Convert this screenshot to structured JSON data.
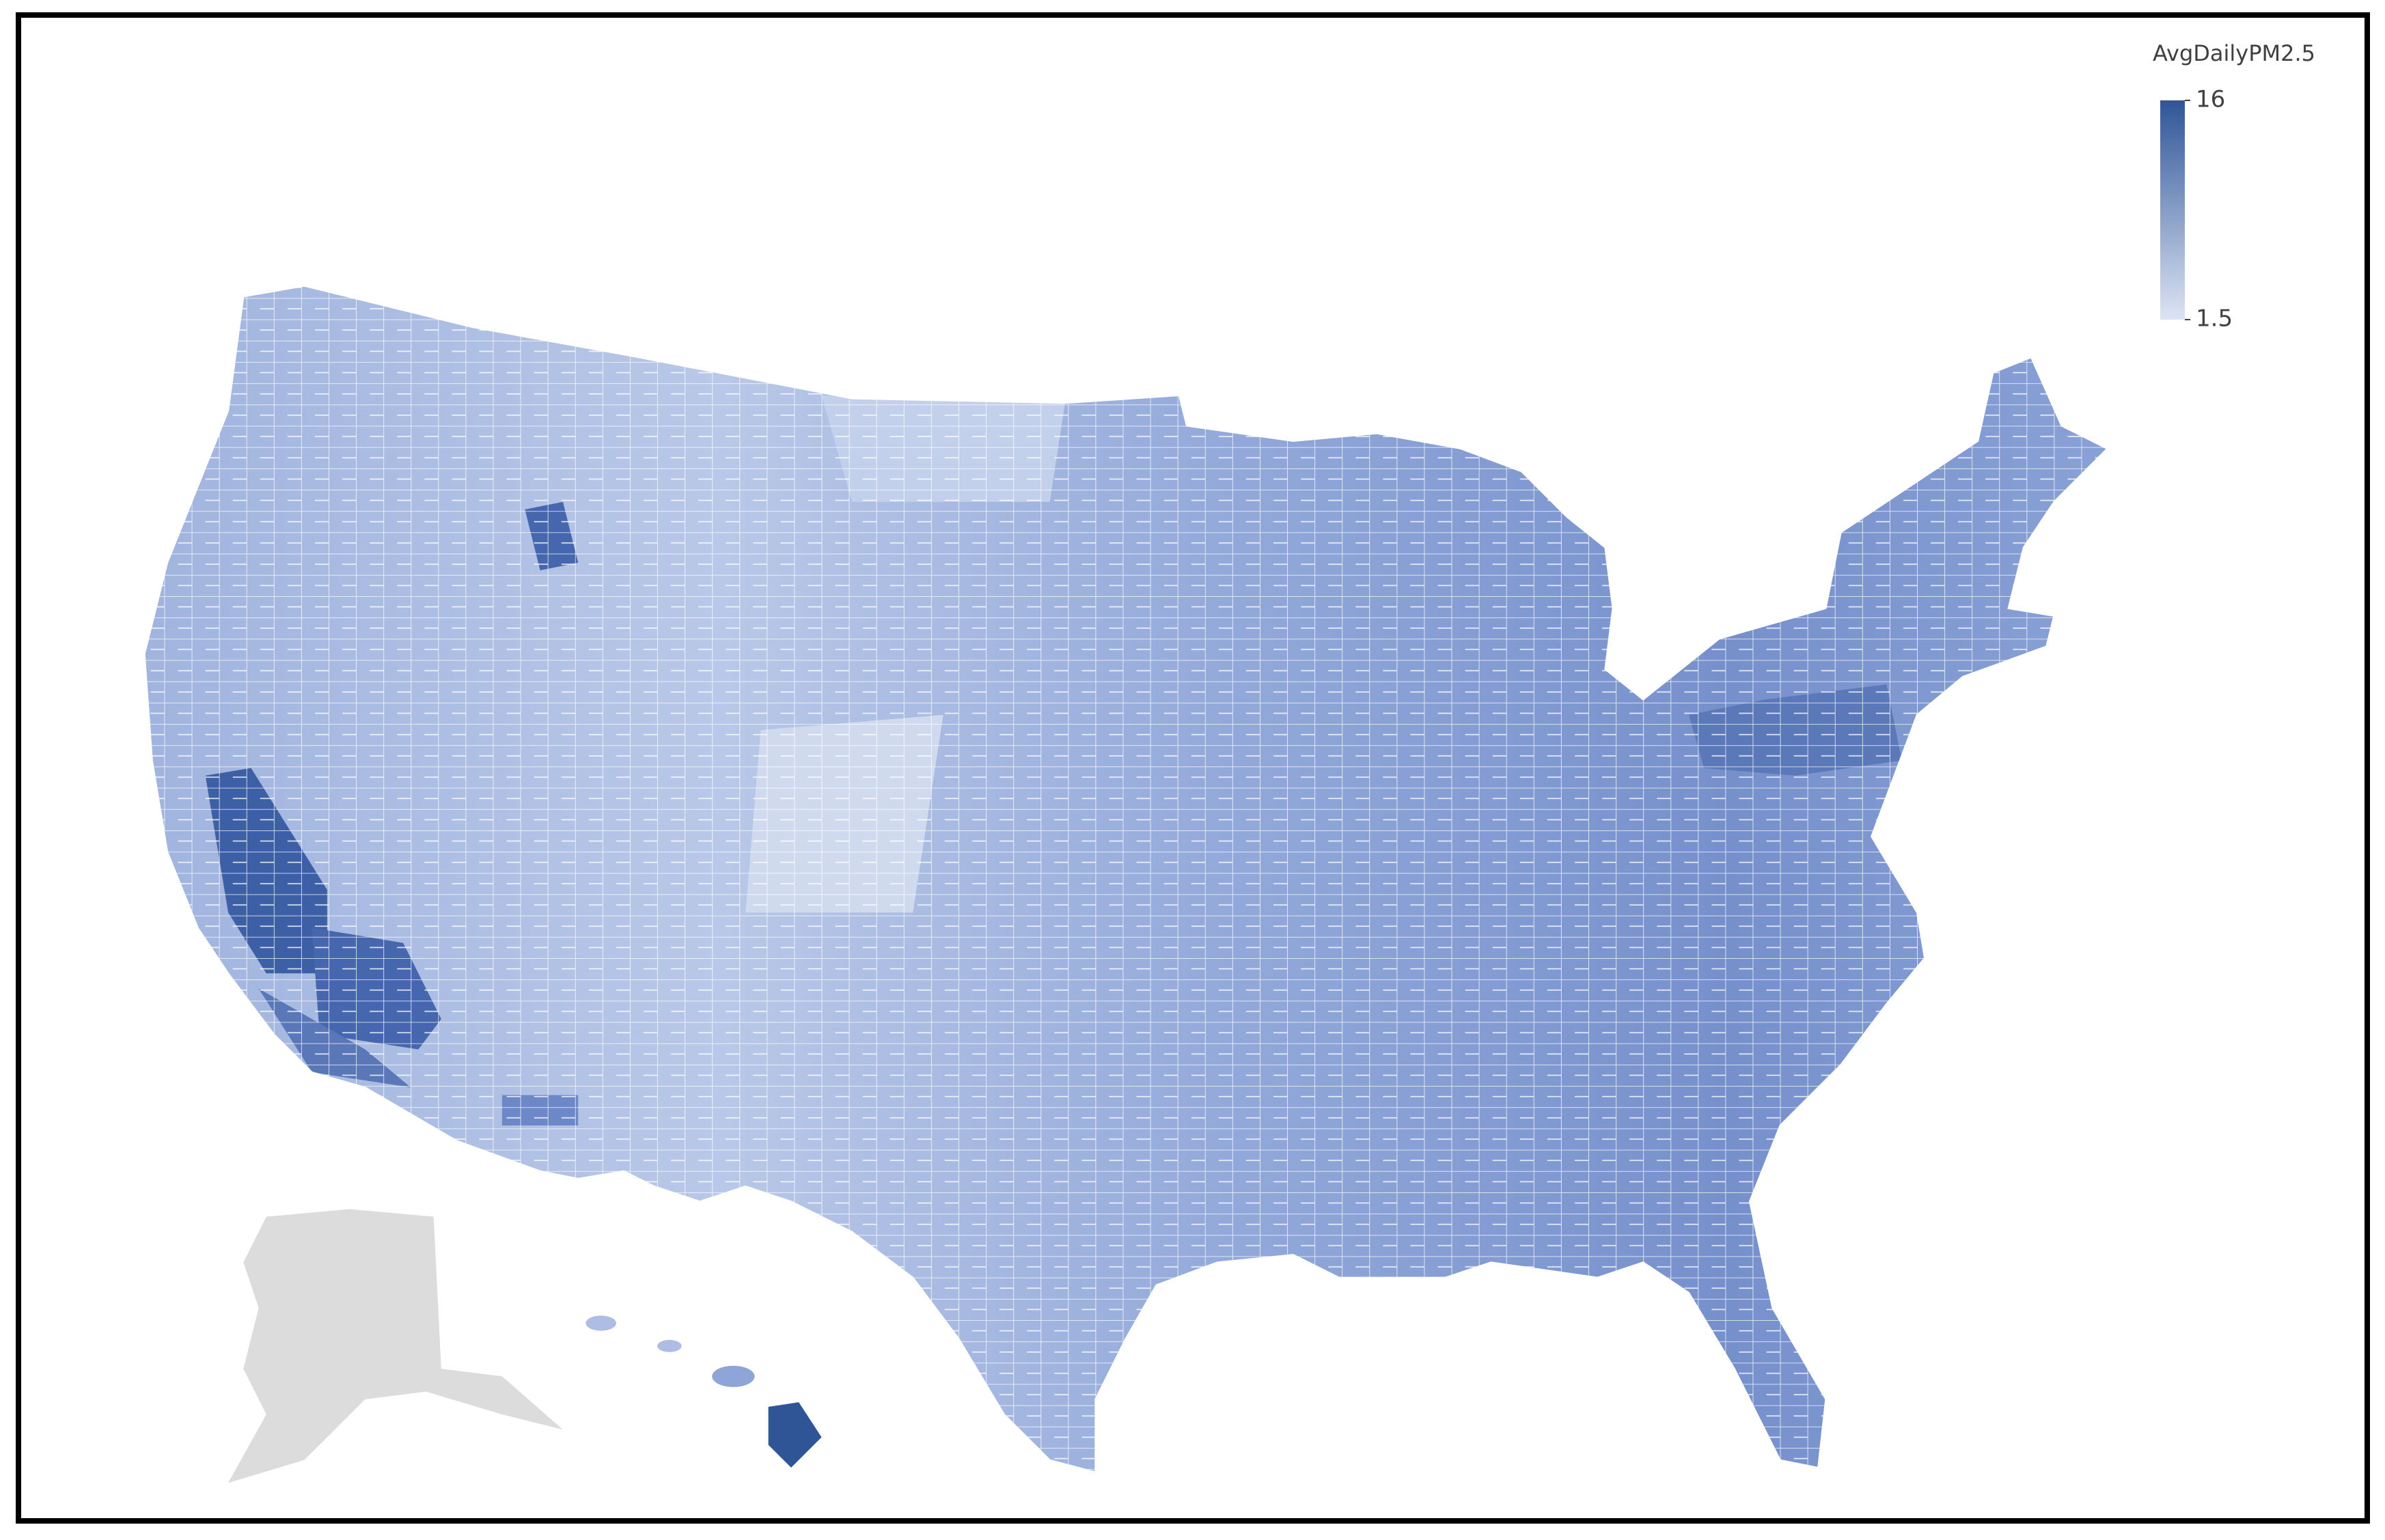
{
  "legend": {
    "title": "AvgDailyPM2.5",
    "max": 16,
    "min": 1.5,
    "colors": [
      "#dde4f4",
      "#2f5597"
    ]
  }
}
